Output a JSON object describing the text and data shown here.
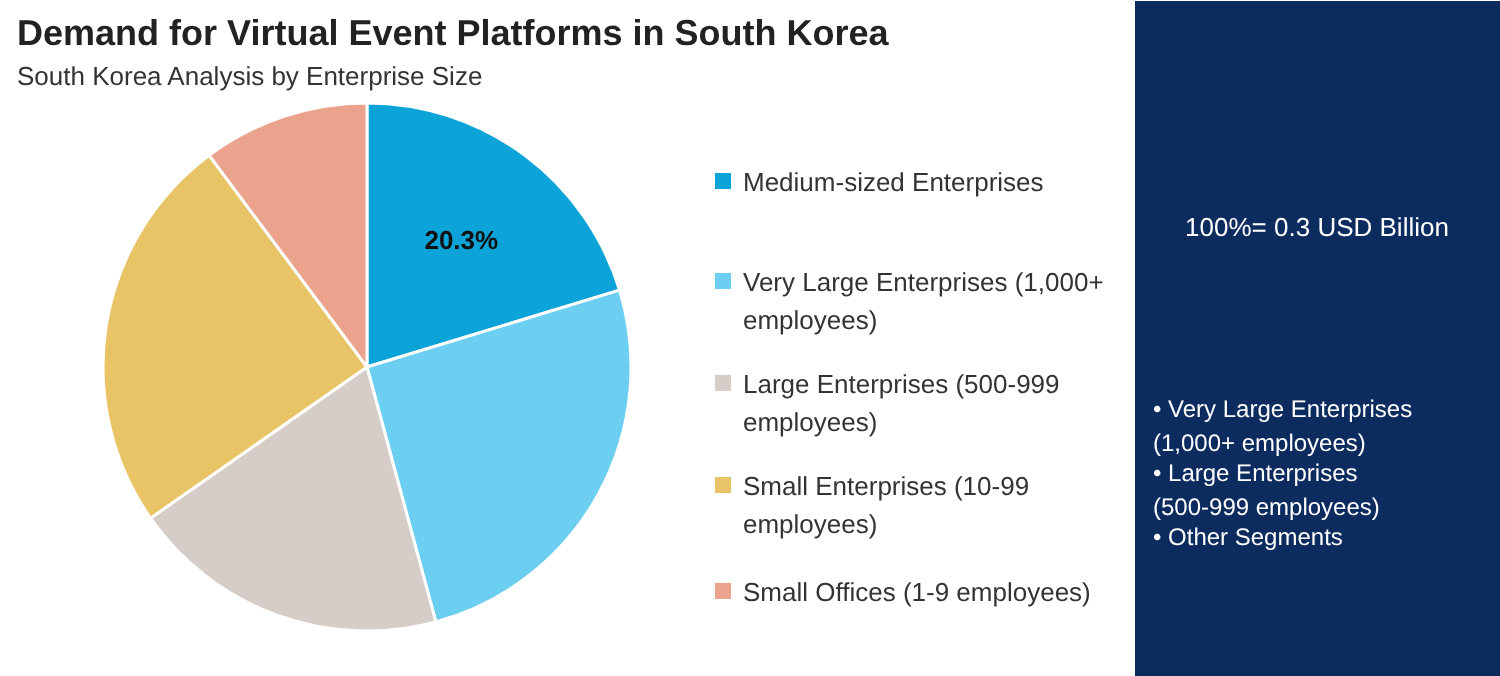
{
  "chart_data": {
    "type": "pie",
    "title": "Demand for Virtual Event Platforms in South Korea",
    "subtitle": "South Korea Analysis by Enterprise Size",
    "categories": [
      "Medium-sized Enterprises",
      "Very Large Enterprises (1,000+ employees)",
      "Large Enterprises (500-999 employees)",
      "Small Enterprises (10-99 employees)",
      "Small Offices (1-9 employees)"
    ],
    "values": [
      20.3,
      25.5,
      19.5,
      24.5,
      10.2
    ],
    "colors": [
      "#0ba3d8",
      "#6ccff2",
      "#d7cdc8",
      "#e9c466",
      "#eca38e"
    ],
    "value_labels": [
      "20.3%",
      null,
      null,
      null,
      null
    ],
    "legend": "right",
    "annotations": [
      "100%= 0.3 USD Billion",
      "• Very Large Enterprises (1,000+ employees)",
      "• Large Enterprises (500-999 employees)",
      "• Other Segments"
    ]
  }
}
